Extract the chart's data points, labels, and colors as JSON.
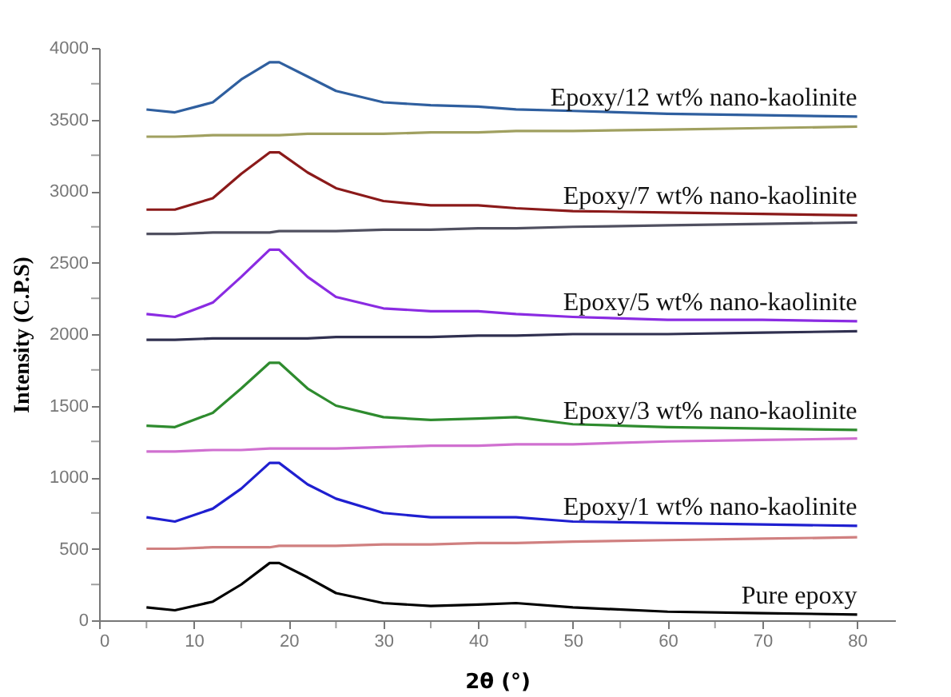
{
  "chart_data": {
    "type": "line",
    "xlabel": "2θ (°)",
    "ylabel": "Intensity (C.P.S)",
    "xlim": [
      0,
      84
    ],
    "ylim": [
      0,
      4000
    ],
    "xticks": [
      0,
      {
        "value": 5,
        "label": null
      },
      10,
      {
        "value": 15,
        "label": null
      },
      20,
      {
        "value": 25,
        "label": null
      },
      30,
      {
        "value": 35,
        "label": null
      },
      40,
      {
        "value": 45,
        "label": null
      },
      50,
      {
        "value": 55,
        "label": null
      },
      60,
      {
        "value": 65,
        "label": null
      },
      70,
      {
        "value": 75,
        "label": null
      },
      80
    ],
    "yticks": [
      0,
      {
        "value": 250,
        "label": null
      },
      500,
      {
        "value": 750,
        "label": null
      },
      1000,
      {
        "value": 1250,
        "label": null
      },
      1500,
      {
        "value": 1750,
        "label": null
      },
      2000,
      {
        "value": 2250,
        "label": null
      },
      2500,
      {
        "value": 2750,
        "label": null
      },
      3000,
      {
        "value": 3250,
        "label": null
      },
      3500,
      {
        "value": 3750,
        "label": null
      },
      4000
    ],
    "grid": false,
    "legend": false,
    "marker": "none",
    "line_style": "solid",
    "x": [
      5,
      8,
      12,
      15,
      18,
      19,
      22,
      25,
      30,
      35,
      40,
      44,
      50,
      60,
      70,
      80
    ],
    "series": [
      {
        "name": "Pure epoxy",
        "color": "#000000",
        "values": [
          90,
          70,
          130,
          250,
          400,
          400,
          300,
          190,
          120,
          100,
          110,
          120,
          90,
          60,
          50,
          40
        ]
      },
      {
        "name": "Epoxy/1 wt% nano-kaolinite",
        "color": "#1f1fd0",
        "values": [
          720,
          690,
          780,
          920,
          1100,
          1100,
          950,
          850,
          750,
          720,
          720,
          720,
          690,
          680,
          670,
          660
        ]
      },
      {
        "name": "Epoxy/3 wt% nano-kaolinite",
        "color": "#2e8b2e",
        "values": [
          1360,
          1350,
          1450,
          1620,
          1800,
          1800,
          1620,
          1500,
          1420,
          1400,
          1410,
          1420,
          1370,
          1350,
          1340,
          1330
        ]
      },
      {
        "name": "Epoxy/5 wt% nano-kaolinite",
        "color": "#8a2be2",
        "values": [
          2140,
          2120,
          2220,
          2400,
          2590,
          2590,
          2400,
          2260,
          2180,
          2160,
          2160,
          2140,
          2120,
          2100,
          2100,
          2090
        ]
      },
      {
        "name": "Epoxy/7 wt% nano-kaolinite",
        "color": "#8b1a1a",
        "values": [
          2870,
          2870,
          2950,
          3120,
          3270,
          3270,
          3130,
          3020,
          2930,
          2900,
          2900,
          2880,
          2860,
          2850,
          2840,
          2830
        ]
      },
      {
        "name": "Epoxy/12 wt% nano-kaolinite",
        "color": "#2f5f9f",
        "values": [
          3570,
          3550,
          3620,
          3780,
          3900,
          3900,
          3800,
          3700,
          3620,
          3600,
          3590,
          3570,
          3560,
          3540,
          3530,
          3520
        ]
      },
      {
        "color": "#d08080",
        "values": [
          500,
          500,
          510,
          510,
          510,
          520,
          520,
          520,
          530,
          530,
          540,
          540,
          550,
          560,
          570,
          580
        ]
      },
      {
        "color": "#d070d0",
        "values": [
          1180,
          1180,
          1190,
          1190,
          1200,
          1200,
          1200,
          1200,
          1210,
          1220,
          1220,
          1230,
          1230,
          1250,
          1260,
          1270
        ]
      },
      {
        "color": "#303050",
        "values": [
          1960,
          1960,
          1970,
          1970,
          1970,
          1970,
          1970,
          1980,
          1980,
          1980,
          1990,
          1990,
          2000,
          2000,
          2010,
          2020
        ]
      },
      {
        "color": "#505060",
        "values": [
          2700,
          2700,
          2710,
          2710,
          2710,
          2720,
          2720,
          2720,
          2730,
          2730,
          2740,
          2740,
          2750,
          2760,
          2770,
          2780
        ]
      },
      {
        "color": "#a0a060",
        "values": [
          3380,
          3380,
          3390,
          3390,
          3390,
          3390,
          3400,
          3400,
          3400,
          3410,
          3410,
          3420,
          3420,
          3430,
          3440,
          3450
        ]
      }
    ]
  }
}
